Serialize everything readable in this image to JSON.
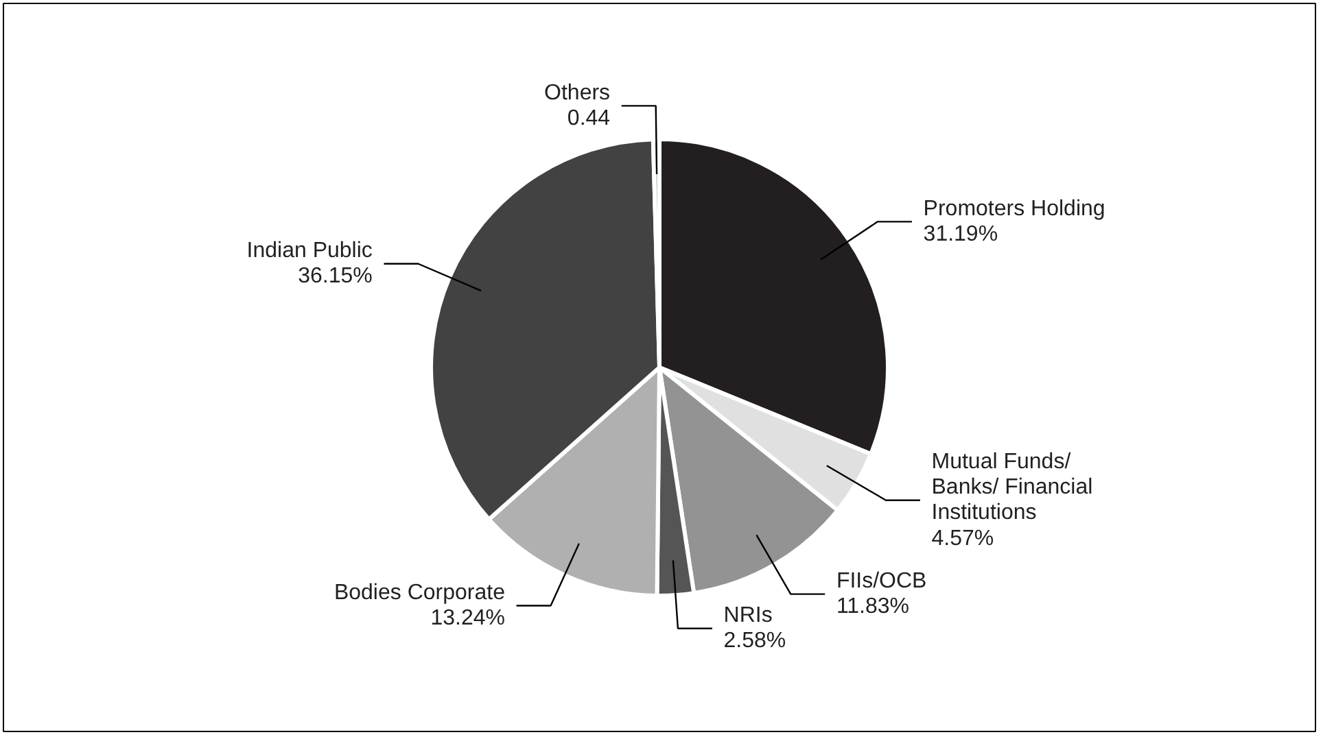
{
  "chart_data": {
    "type": "pie",
    "categories": [
      "Promoters Holding",
      "Mutual Funds/\nBanks/ Financial\nInstitutions",
      "FIIs/OCB",
      "NRIs",
      "Bodies Corporate",
      "Indian Public",
      "Others"
    ],
    "values": [
      31.19,
      4.57,
      11.83,
      2.58,
      13.24,
      36.15,
      0.44
    ],
    "value_labels": [
      "31.19%",
      "4.57%",
      "11.83%",
      "2.58%",
      "13.24%",
      "36.15%",
      "0.44"
    ],
    "colors": [
      "#231f20",
      "#e0e0e0",
      "#939393",
      "#555555",
      "#b0b0b0",
      "#424242",
      "#c8c8c8"
    ]
  }
}
